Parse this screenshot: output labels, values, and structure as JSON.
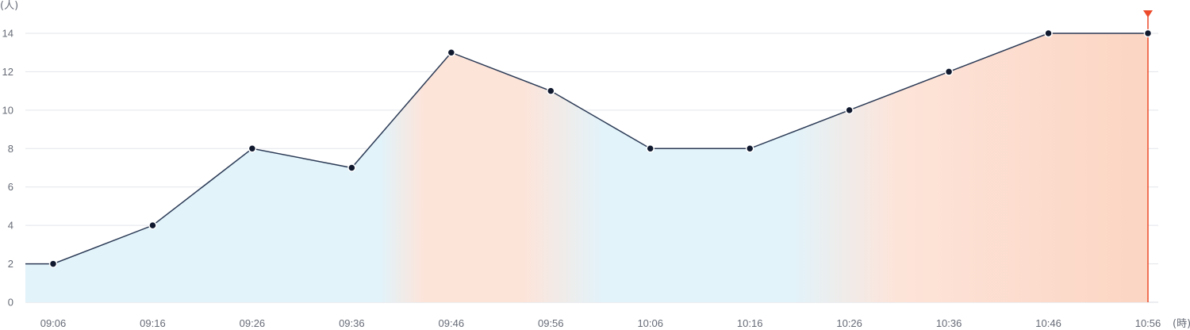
{
  "chart_data": {
    "type": "area",
    "y_unit": "(人)",
    "x_unit": "(時)",
    "x": [
      "09:06",
      "09:16",
      "09:26",
      "09:36",
      "09:46",
      "09:56",
      "10:06",
      "10:16",
      "10:26",
      "10:36",
      "10:46",
      "10:56"
    ],
    "values": [
      2,
      4,
      8,
      7,
      13,
      11,
      8,
      8,
      10,
      12,
      14,
      14
    ],
    "ylim": [
      0,
      14
    ],
    "yticks": [
      0,
      2,
      4,
      6,
      8,
      10,
      12,
      14
    ],
    "grid": true,
    "current_marker_x": "10:56",
    "colors": {
      "line": "#2b3a55",
      "point": "#10192e",
      "fill_calm": "#e2f3fa",
      "fill_busy": "#fde4d9",
      "fill_busy_strong": "#fcd5c3",
      "marker": "#ec4a2a"
    }
  }
}
